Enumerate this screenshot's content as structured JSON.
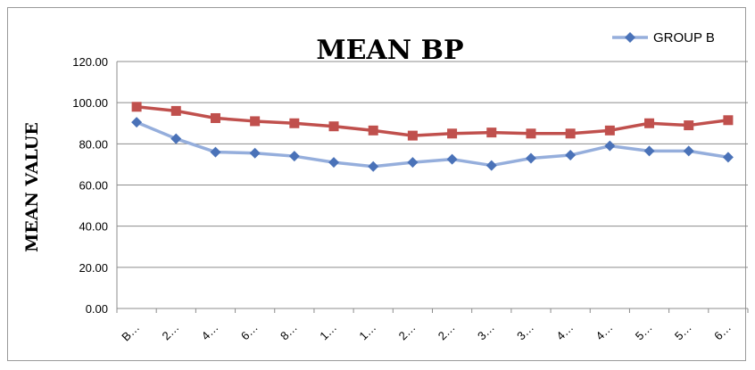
{
  "chart_data": {
    "type": "line",
    "title": "MEAN BP",
    "xlabel": "",
    "ylabel": "MEAN VALUE",
    "ylim": [
      0,
      120
    ],
    "yticks": [
      "0.00",
      "20.00",
      "40.00",
      "60.00",
      "80.00",
      "100.00",
      "120.00"
    ],
    "categories": [
      "B…",
      "2…",
      "4…",
      "6…",
      "8…",
      "1…",
      "1…",
      "2…",
      "2…",
      "3…",
      "3…",
      "4…",
      "4…",
      "5…",
      "5…",
      "6…"
    ],
    "grid": true,
    "legend_position": "top-right",
    "series": [
      {
        "name": "GROUP B",
        "color": "#4a72b8",
        "line_color": "#95aedc",
        "marker": "diamond",
        "values": [
          90.5,
          82.5,
          76.0,
          75.5,
          74.0,
          71.0,
          69.0,
          71.0,
          72.5,
          69.5,
          73.0,
          74.5,
          79.0,
          76.5,
          76.5,
          73.5
        ]
      },
      {
        "color": "#c0504d",
        "line_color": "#c0504d",
        "marker": "square",
        "values": [
          98.0,
          96.0,
          92.5,
          91.0,
          90.0,
          88.5,
          86.5,
          84.0,
          85.0,
          85.5,
          85.0,
          85.0,
          86.5,
          90.0,
          89.0,
          91.5
        ]
      }
    ]
  }
}
